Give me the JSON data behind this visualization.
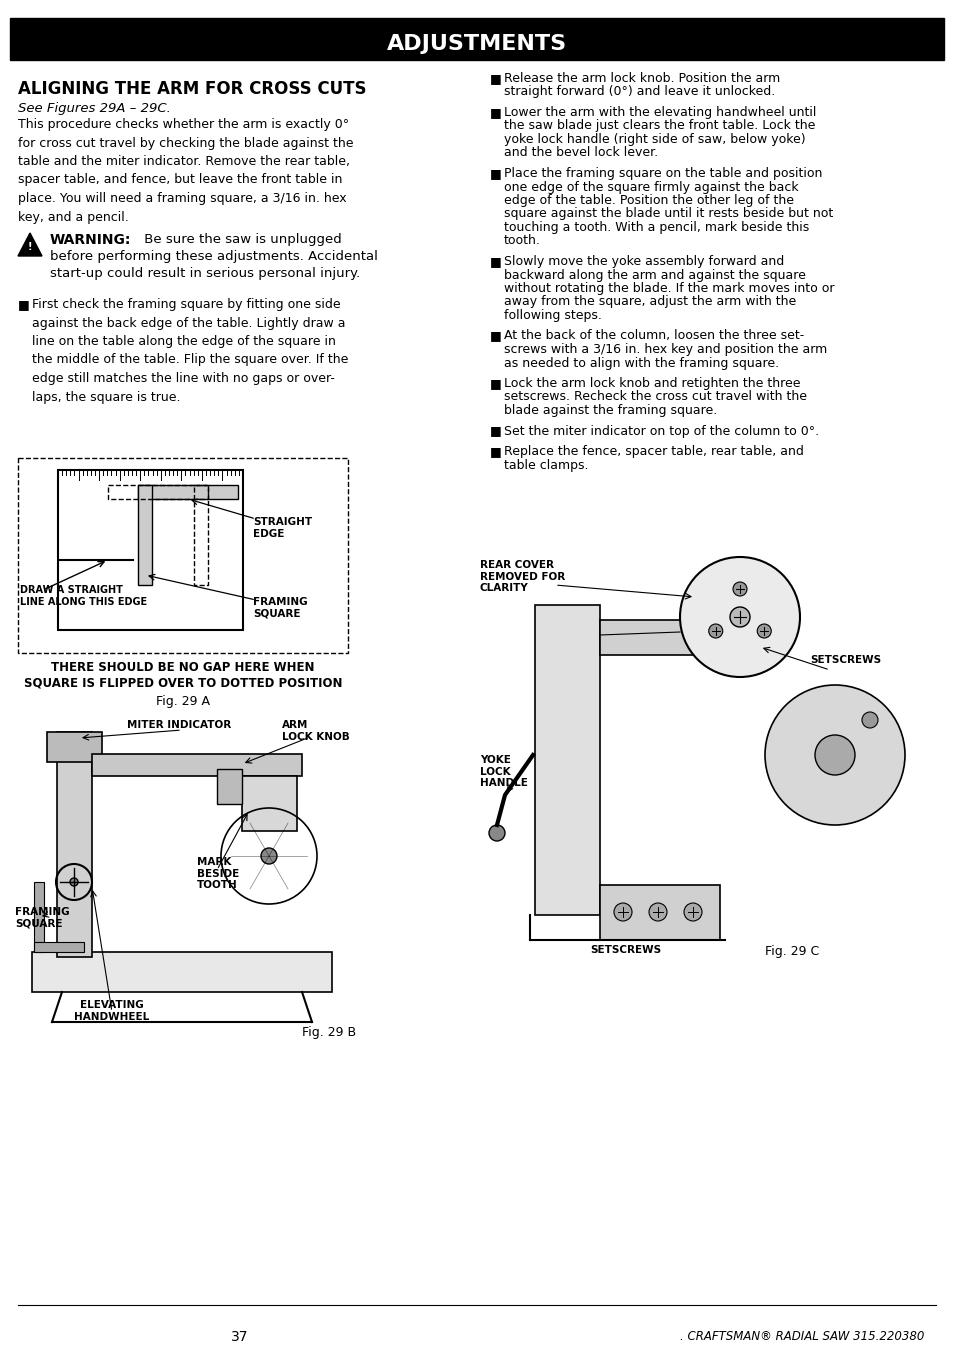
{
  "title": "ADJUSTMENTS",
  "title_bg": "#000000",
  "title_color": "#ffffff",
  "page_bg": "#ffffff",
  "section_title": "ALIGNING THE ARM FOR CROSS CUTS",
  "section_subtitle": "See Figures 29A – 29C.",
  "intro_text": "This procedure checks whether the arm is exactly 0°\nfor cross cut travel by checking the blade against the\ntable and the miter indicator. Remove the rear table,\nspacer table, and fence, but leave the front table in\nplace. You will need a framing square, a 3/16 in. hex\nkey, and a pencil.",
  "warning_title": "WARNING:",
  "warning_line1": " Be sure the saw is unplugged",
  "warning_line2": "before performing these adjustments. Accidental",
  "warning_line3": "start-up could result in serious personal injury.",
  "bullet_left1": "First check the framing square by fitting one side\nagainst the back edge of the table. Lightly draw a\nline on the table along the edge of the square in\nthe middle of the table. Flip the square over. If the\nedge still matches the line with no gaps or over-\nlaps, the square is true.",
  "bullets_right": [
    "Release the arm lock knob. Position the arm\nstraight forward (0°) and leave it unlocked.",
    "Lower the arm with the elevating handwheel until\nthe saw blade just clears the front table. Lock the\nyoke lock handle (right side of saw, below yoke)\nand the bevel lock lever.",
    "Place the framing square on the table and position\none edge of the square firmly against the back\nedge of the table. Position the other leg of the\nsquare against the blade until it rests beside but not\ntouching a tooth. With a pencil, mark beside this\ntooth.",
    "Slowly move the yoke assembly forward and\nbackward along the arm and against the square\nwithout rotating the blade. If the mark moves into or\naway from the square, adjust the arm with the\nfollowing steps.",
    "At the back of the column, loosen the three set-\nscrews with a 3/16 in. hex key and position the arm\nas needed to align with the framing square.",
    "Lock the arm lock knob and retighten the three\nsetscrews. Recheck the cross cut travel with the\nblade against the framing square.",
    "Set the miter indicator on top of the column to 0°.",
    "Replace the fence, spacer table, rear table, and\ntable clamps."
  ],
  "fig29a_caption1": "THERE SHOULD BE NO GAP HERE WHEN",
  "fig29a_caption2": "SQUARE IS FLIPPED OVER TO DOTTED POSITION",
  "fig29a_label": "Fig. 29 A",
  "fig29b_label": "Fig. 29 B",
  "fig29c_label": "Fig. 29 C",
  "label_straight_edge": "STRAIGHT\nEDGE",
  "label_framing_square_fig29a": "FRAMING\nSQUARE",
  "label_draw_line": "DRAW A STRAIGHT\nLINE ALONG THIS EDGE",
  "label_miter_indicator": "MITER INDICATOR",
  "label_arm_lock_knob": "ARM\nLOCK KNOB",
  "label_framing_square_fig29b": "FRAMING\nSQUARE",
  "label_mark_beside_tooth": "MARK\nBESIDE\nTOOTH",
  "label_elevating_handwheel": "ELEVATING\nHANDWHEEL",
  "label_rear_cover": "REAR COVER\nREMOVED FOR\nCLARITY",
  "label_setscrews_top": "SETSCREWS",
  "label_yoke_lock": "YOKE\nLOCK\nHANDLE",
  "label_setscrews_bottom": "SETSCREWS",
  "footer_page": "37",
  "footer_brand": ". CRAFTSMAN® RADIAL SAW 315.220380"
}
